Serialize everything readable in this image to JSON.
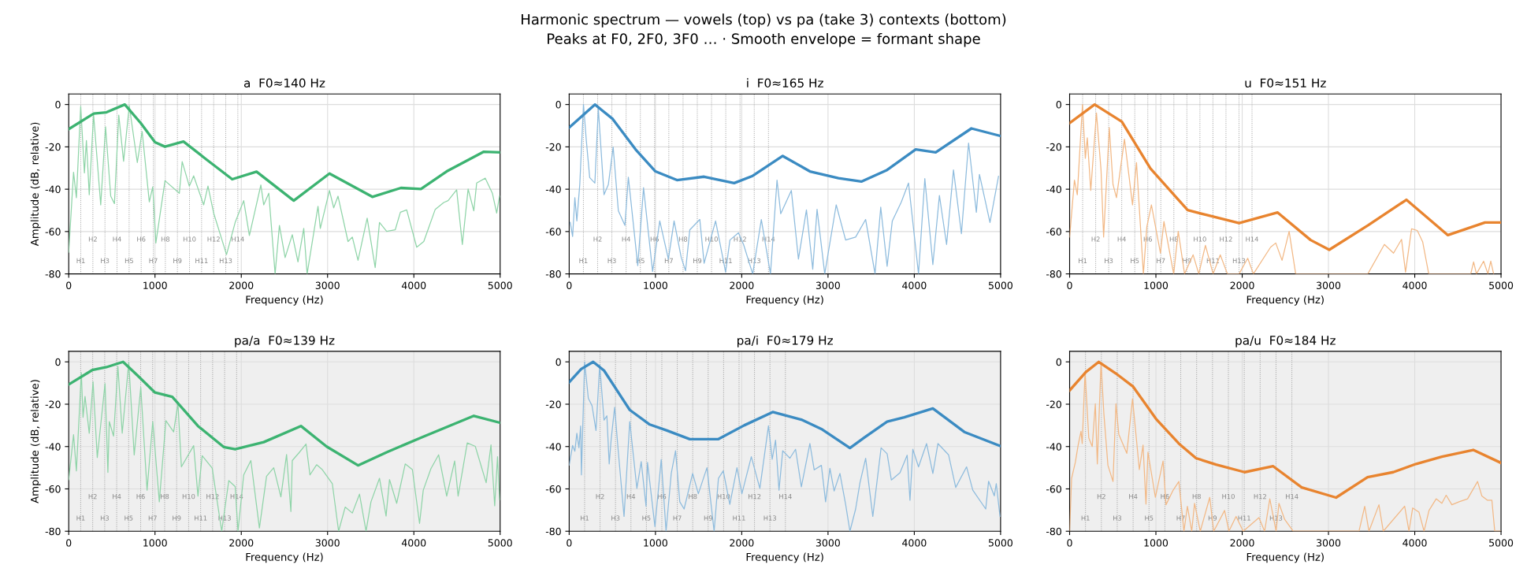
{
  "chart_data": [
    {
      "type": "line",
      "title": "a  F0≈140 Hz",
      "xlabel": "Frequency (Hz)",
      "ylabel": "Amplitude (dB, relative)",
      "annotations": [
        "Harmonic spectrum — vowels (top) vs pa (take 3) contexts (bottom)",
        "Peaks at F0, 2F0, 3F0 … · Smooth envelope = formant shape"
      ],
      "xlim": [
        0,
        5000
      ],
      "xticks": [
        0,
        1000,
        2000,
        3000,
        4000,
        5000
      ],
      "ylim": [
        -80,
        5
      ],
      "yticks": [
        -80,
        -60,
        -40,
        -20,
        0
      ],
      "grid": true,
      "ref_lines": [
        {
          "axis": "x",
          "value": 140,
          "label": "H1"
        },
        {
          "axis": "x",
          "value": 280,
          "label": "H2"
        },
        {
          "axis": "x",
          "value": 420,
          "label": "H3"
        },
        {
          "axis": "x",
          "value": 560,
          "label": "H4"
        },
        {
          "axis": "x",
          "value": 700,
          "label": "H5"
        },
        {
          "axis": "x",
          "value": 840,
          "label": "H6"
        },
        {
          "axis": "x",
          "value": 980,
          "label": "H7"
        },
        {
          "axis": "x",
          "value": 1120,
          "label": "H8"
        },
        {
          "axis": "x",
          "value": 1260,
          "label": "H9"
        },
        {
          "axis": "x",
          "value": 1400,
          "label": "H10"
        },
        {
          "axis": "x",
          "value": 1540,
          "label": "H11"
        },
        {
          "axis": "x",
          "value": 1680,
          "label": "H12"
        },
        {
          "axis": "x",
          "value": 1820,
          "label": "H13"
        },
        {
          "axis": "x",
          "value": 1960,
          "label": "H14"
        }
      ],
      "series": [
        {
          "color": "#8fd4a8",
          "x": [
            0,
            56,
            89,
            139,
            182,
            205,
            238,
            288,
            371,
            427,
            487,
            530,
            580,
            636,
            702,
            795,
            851,
            934,
            974,
            1010,
            1116,
            1282,
            1315,
            1398,
            1448,
            1564,
            1614,
            1680,
            1829,
            1929,
            2028,
            2094,
            2227,
            2260,
            2319,
            2392,
            2442,
            2508,
            2591,
            2657,
            2724,
            2763,
            2889,
            2916,
            3022,
            3071,
            3121,
            3237,
            3287,
            3353,
            3459,
            3552,
            3602,
            3685,
            3784,
            3844,
            3917,
            4033,
            4115,
            4248,
            4347,
            4397,
            4496,
            4562,
            4629,
            4695,
            4728,
            4828,
            4910,
            4960,
            4993
          ],
          "values": [
            -69.8,
            -32,
            -44,
            -0.8,
            -32.3,
            -17,
            -42.6,
            -4.7,
            -47.4,
            -10.5,
            -43.3,
            -46.8,
            -5,
            -26.8,
            -0.6,
            -27.4,
            -12.7,
            -46,
            -38.9,
            -65.4,
            -36,
            -41.9,
            -27,
            -38.6,
            -33.7,
            -47.4,
            -38.5,
            -51.3,
            -70.9,
            -55.7,
            -45.4,
            -61.9,
            -38,
            -47.4,
            -41.9,
            -80,
            -57.1,
            -72.3,
            -61.5,
            -74.3,
            -58.5,
            -80,
            -48.1,
            -58.5,
            -40.6,
            -48.8,
            -43.3,
            -64.7,
            -62.6,
            -73.6,
            -53.7,
            -77,
            -55.7,
            -59.9,
            -59.2,
            -50.9,
            -49.8,
            -67.4,
            -64.7,
            -49.5,
            -46.3,
            -45.4,
            -40.3,
            -66.1,
            -39.9,
            -50.2,
            -37.1,
            -34.8,
            -41.9,
            -51.3,
            -43.3
          ]
        },
        {
          "color": "#3cb371",
          "x": [
            0,
            290,
            437,
            650,
            835,
            1000,
            1115,
            1330,
            1597,
            1895,
            2177,
            2608,
            3022,
            3519,
            3850,
            4082,
            4380,
            4811,
            4993
          ],
          "values": [
            -11.6,
            -4.3,
            -3.7,
            0,
            -8.8,
            -17.8,
            -19.9,
            -17.5,
            -26,
            -35.3,
            -31.7,
            -45.4,
            -32.6,
            -43.6,
            -39.4,
            -39.9,
            -31.6,
            -22.3,
            -22.6
          ]
        }
      ]
    },
    {
      "type": "line",
      "title": "i  F0≈165 Hz",
      "xlabel": "Frequency (Hz)",
      "xlim": [
        0,
        5000
      ],
      "xticks": [
        0,
        1000,
        2000,
        3000,
        4000,
        5000
      ],
      "ylim": [
        -80,
        5
      ],
      "yticks": [
        -80,
        -60,
        -40,
        -20,
        0
      ],
      "grid": true,
      "ref_lines": [
        {
          "axis": "x",
          "value": 165,
          "label": "H1"
        },
        {
          "axis": "x",
          "value": 330,
          "label": "H2"
        },
        {
          "axis": "x",
          "value": 495,
          "label": "H3"
        },
        {
          "axis": "x",
          "value": 660,
          "label": "H4"
        },
        {
          "axis": "x",
          "value": 825,
          "label": "H5"
        },
        {
          "axis": "x",
          "value": 990,
          "label": "H6"
        },
        {
          "axis": "x",
          "value": 1155,
          "label": "H7"
        },
        {
          "axis": "x",
          "value": 1320,
          "label": "H8"
        },
        {
          "axis": "x",
          "value": 1485,
          "label": "H9"
        },
        {
          "axis": "x",
          "value": 1650,
          "label": "H10"
        },
        {
          "axis": "x",
          "value": 1815,
          "label": "H11"
        },
        {
          "axis": "x",
          "value": 1980,
          "label": "H12"
        },
        {
          "axis": "x",
          "value": 2145,
          "label": "H13"
        },
        {
          "axis": "x",
          "value": 2310,
          "label": "H14"
        }
      ],
      "series": [
        {
          "color": "#8dbbdd",
          "x": [
            13,
            40,
            66,
            89,
            123,
            166,
            199,
            238,
            298,
            338,
            404,
            454,
            510,
            570,
            646,
            686,
            795,
            862,
            967,
            1050,
            1150,
            1216,
            1299,
            1349,
            1398,
            1514,
            1564,
            1697,
            1813,
            1863,
            1962,
            2021,
            2127,
            2227,
            2333,
            2409,
            2452,
            2575,
            2657,
            2750,
            2823,
            2873,
            2962,
            3095,
            3204,
            3320,
            3436,
            3545,
            3611,
            3685,
            3745,
            3850,
            3933,
            4049,
            4122,
            4215,
            4291,
            4374,
            4454,
            4546,
            4629,
            4719,
            4755,
            4877,
            4976
          ],
          "values": [
            -55.7,
            -62.3,
            -44,
            -55,
            -37.8,
            0,
            -17.1,
            -34.5,
            -37.1,
            -1.9,
            -42.6,
            -37.8,
            -20.1,
            -50.2,
            -57.1,
            -34.3,
            -76.1,
            -39.3,
            -78.9,
            -55,
            -73,
            -55,
            -72.3,
            -78.5,
            -59.2,
            -54.3,
            -75,
            -55,
            -79.2,
            -64,
            -60.6,
            -66.1,
            -80,
            -54.3,
            -80,
            -35.7,
            -51.6,
            -40.6,
            -73,
            -49.8,
            -77.8,
            -49.5,
            -80,
            -47.4,
            -64,
            -62.6,
            -54.3,
            -80,
            -48.5,
            -76.4,
            -55,
            -46,
            -37.1,
            -80,
            -35,
            -75.6,
            -43,
            -66.1,
            -30.9,
            -61,
            -18.2,
            -50.9,
            -33,
            -55.7,
            -33.9
          ]
        },
        {
          "color": "#3b8bc2",
          "x": [
            0,
            298,
            504,
            769,
            1000,
            1249,
            1564,
            1912,
            2127,
            2475,
            2790,
            3121,
            3386,
            3685,
            4016,
            4248,
            4662,
            4993
          ],
          "values": [
            -10.9,
            0,
            -6.8,
            -21.2,
            -31.6,
            -35.7,
            -34.1,
            -37.1,
            -33.7,
            -24.3,
            -31.6,
            -34.8,
            -36.4,
            -30.9,
            -21.2,
            -22.6,
            -11.3,
            -14.8
          ]
        }
      ]
    },
    {
      "type": "line",
      "title": "u  F0≈151 Hz",
      "xlabel": "Frequency (Hz)",
      "xlim": [
        0,
        5000
      ],
      "xticks": [
        0,
        1000,
        2000,
        3000,
        4000,
        5000
      ],
      "ylim": [
        -80,
        5
      ],
      "yticks": [
        -80,
        -60,
        -40,
        -20,
        0
      ],
      "grid": true,
      "ref_lines": [
        {
          "axis": "x",
          "value": 151,
          "label": "H1"
        },
        {
          "axis": "x",
          "value": 302,
          "label": "H2"
        },
        {
          "axis": "x",
          "value": 453,
          "label": "H3"
        },
        {
          "axis": "x",
          "value": 604,
          "label": "H4"
        },
        {
          "axis": "x",
          "value": 755,
          "label": "H5"
        },
        {
          "axis": "x",
          "value": 906,
          "label": "H6"
        },
        {
          "axis": "x",
          "value": 1057,
          "label": "H7"
        },
        {
          "axis": "x",
          "value": 1208,
          "label": "H8"
        },
        {
          "axis": "x",
          "value": 1359,
          "label": "H9"
        },
        {
          "axis": "x",
          "value": 1510,
          "label": "H10"
        },
        {
          "axis": "x",
          "value": 1661,
          "label": "H11"
        },
        {
          "axis": "x",
          "value": 1812,
          "label": "H12"
        },
        {
          "axis": "x",
          "value": 1963,
          "label": "H13"
        },
        {
          "axis": "x",
          "value": 2114,
          "label": "H14"
        }
      ],
      "series": [
        {
          "color": "#f2b885",
          "x": [
            0,
            56,
            89,
            149,
            182,
            205,
            245,
            311,
            364,
            394,
            460,
            503,
            543,
            636,
            686,
            729,
            775,
            855,
            895,
            948,
            1053,
            1093,
            1206,
            1259,
            1332,
            1431,
            1497,
            1574,
            1663,
            1746,
            1829,
            1964,
            2064,
            2130,
            2329,
            2389,
            2462,
            2544,
            2620,
            3456,
            3648,
            3754,
            3847,
            3893,
            3963,
            4029,
            4092,
            4162,
            4649,
            4682,
            4715,
            4798,
            4848,
            4881,
            4914
          ],
          "values": [
            -62.6,
            -35.7,
            -42.6,
            0,
            -25.4,
            -15.7,
            -40.6,
            -4,
            -30.9,
            -62.6,
            -10.9,
            -37.8,
            -44,
            -16.4,
            -33,
            -47.4,
            -27.4,
            -80,
            -57.8,
            -47.4,
            -70.2,
            -55.3,
            -80,
            -59.9,
            -80,
            -71,
            -80,
            -66.5,
            -80,
            -71,
            -80,
            -80,
            -72.6,
            -80,
            -67.4,
            -65.4,
            -73.6,
            -59.9,
            -80,
            -80,
            -66.1,
            -70.2,
            -63.7,
            -79.2,
            -58.7,
            -59.5,
            -64.9,
            -80,
            -80,
            -74.3,
            -80,
            -74,
            -80,
            -74,
            -80
          ]
        },
        {
          "color": "#e8842f",
          "x": [
            0,
            290,
            605,
            937,
            1368,
            1600,
            1964,
            2411,
            2793,
            3009,
            3456,
            3903,
            4384,
            4814,
            4996
          ],
          "values": [
            -8.8,
            0,
            -8.1,
            -30.2,
            -49.9,
            -52.3,
            -56,
            -51,
            -64,
            -68.6,
            -57.1,
            -45,
            -61.7,
            -55.7,
            -55.7
          ]
        }
      ]
    },
    {
      "type": "line",
      "title": "pa/a  F0≈139 Hz",
      "xlabel": "Frequency (Hz)",
      "ylabel": "Amplitude (dB, relative)",
      "xlim": [
        0,
        5000
      ],
      "xticks": [
        0,
        1000,
        2000,
        3000,
        4000,
        5000
      ],
      "ylim": [
        -80,
        5
      ],
      "yticks": [
        -80,
        -60,
        -40,
        -20,
        0
      ],
      "grid": true,
      "bands": [
        {
          "axis": "x",
          "from": 0,
          "to": 5000,
          "color": "#efefef"
        }
      ],
      "ref_lines": [
        {
          "axis": "x",
          "value": 139,
          "label": "H1"
        },
        {
          "axis": "x",
          "value": 278,
          "label": "H2"
        },
        {
          "axis": "x",
          "value": 417,
          "label": "H3"
        },
        {
          "axis": "x",
          "value": 556,
          "label": "H4"
        },
        {
          "axis": "x",
          "value": 695,
          "label": "H5"
        },
        {
          "axis": "x",
          "value": 834,
          "label": "H6"
        },
        {
          "axis": "x",
          "value": 973,
          "label": "H7"
        },
        {
          "axis": "x",
          "value": 1112,
          "label": "H8"
        },
        {
          "axis": "x",
          "value": 1251,
          "label": "H9"
        },
        {
          "axis": "x",
          "value": 1390,
          "label": "H10"
        },
        {
          "axis": "x",
          "value": 1529,
          "label": "H11"
        },
        {
          "axis": "x",
          "value": 1668,
          "label": "H12"
        },
        {
          "axis": "x",
          "value": 1807,
          "label": "H13"
        },
        {
          "axis": "x",
          "value": 1946,
          "label": "H14"
        }
      ],
      "series": [
        {
          "color": "#8fd4a8",
          "x": [
            0,
            56,
            89,
            146,
            166,
            189,
            238,
            282,
            331,
            421,
            454,
            470,
            520,
            570,
            620,
            696,
            759,
            835,
            908,
            974,
            1050,
            1126,
            1216,
            1266,
            1306,
            1448,
            1498,
            1547,
            1663,
            1773,
            1855,
            1929,
            1962,
            2028,
            2111,
            2210,
            2293,
            2376,
            2459,
            2525,
            2575,
            2591,
            2674,
            2750,
            2796,
            2873,
            2939,
            3055,
            3128,
            3204,
            3287,
            3370,
            3446,
            3503,
            3602,
            3678,
            3718,
            3801,
            3900,
            3983,
            4066,
            4109,
            4198,
            4287,
            4381,
            4473,
            4513,
            4619,
            4712,
            4838,
            4894,
            4937,
            4970,
            4993
          ],
          "values": [
            -55.7,
            -34.4,
            -51.5,
            -5.2,
            -26.2,
            -16.3,
            -33.7,
            -9.4,
            -45.2,
            -10.3,
            -52.2,
            -28.2,
            -35.1,
            -2.1,
            -33.7,
            -0.3,
            -44,
            -12,
            -60.6,
            -28.2,
            -66.1,
            -27.8,
            -33.1,
            -19.8,
            -49.6,
            -39.6,
            -63.4,
            -44.3,
            -50.2,
            -80,
            -56.1,
            -58.9,
            -80,
            -53.4,
            -46.6,
            -78.5,
            -54,
            -50,
            -63.8,
            -43.8,
            -70.7,
            -46.6,
            -42.7,
            -38.8,
            -53.4,
            -48.6,
            -50.9,
            -57.5,
            -80,
            -68.6,
            -71.4,
            -62.5,
            -80,
            -66.1,
            -55,
            -72.8,
            -55.6,
            -66.8,
            -48.2,
            -50.9,
            -76.3,
            -60.6,
            -50.4,
            -43.9,
            -63.4,
            -46.8,
            -63.4,
            -38.3,
            -39.9,
            -57.1,
            -39.2,
            -68,
            -44.8,
            -65.1
          ]
        },
        {
          "color": "#3cb371",
          "x": [
            0,
            272,
            437,
            630,
            802,
            1000,
            1200,
            1498,
            1796,
            1929,
            2260,
            2691,
            2989,
            3353,
            3685,
            4082,
            4695,
            4993
          ],
          "values": [
            -10.7,
            -3.9,
            -2.5,
            0,
            -6.6,
            -14.5,
            -16.5,
            -30.3,
            -40.2,
            -41.3,
            -37.9,
            -30.3,
            -40,
            -48.9,
            -42.7,
            -35.8,
            -25.5,
            -28.7
          ]
        }
      ]
    },
    {
      "type": "line",
      "title": "pa/i  F0≈179 Hz",
      "xlabel": "Frequency (Hz)",
      "xlim": [
        0,
        5000
      ],
      "xticks": [
        0,
        1000,
        2000,
        3000,
        4000,
        5000
      ],
      "ylim": [
        -80,
        5
      ],
      "yticks": [
        -80,
        -60,
        -40,
        -20,
        0
      ],
      "grid": true,
      "bands": [
        {
          "axis": "x",
          "from": 0,
          "to": 5000,
          "color": "#efefef"
        }
      ],
      "ref_lines": [
        {
          "axis": "x",
          "value": 179,
          "label": "H1"
        },
        {
          "axis": "x",
          "value": 358,
          "label": "H2"
        },
        {
          "axis": "x",
          "value": 537,
          "label": "H3"
        },
        {
          "axis": "x",
          "value": 716,
          "label": "H4"
        },
        {
          "axis": "x",
          "value": 895,
          "label": "H5"
        },
        {
          "axis": "x",
          "value": 1074,
          "label": "H6"
        },
        {
          "axis": "x",
          "value": 1253,
          "label": "H7"
        },
        {
          "axis": "x",
          "value": 1432,
          "label": "H8"
        },
        {
          "axis": "x",
          "value": 1611,
          "label": "H9"
        },
        {
          "axis": "x",
          "value": 1790,
          "label": "H10"
        },
        {
          "axis": "x",
          "value": 1969,
          "label": "H11"
        },
        {
          "axis": "x",
          "value": 2148,
          "label": "H12"
        },
        {
          "axis": "x",
          "value": 2327,
          "label": "H13"
        },
        {
          "axis": "x",
          "value": 2506,
          "label": "H14"
        }
      ],
      "series": [
        {
          "color": "#8dbbdd",
          "x": [
            0,
            40,
            66,
            89,
            113,
            133,
            142,
            179,
            222,
            265,
            311,
            354,
            404,
            437,
            464,
            487,
            527,
            570,
            636,
            702,
            785,
            835,
            891,
            908,
            994,
            1067,
            1123,
            1183,
            1233,
            1282,
            1332,
            1431,
            1497,
            1597,
            1680,
            1730,
            1786,
            1862,
            1945,
            2002,
            2111,
            2210,
            2310,
            2353,
            2392,
            2432,
            2475,
            2558,
            2624,
            2691,
            2790,
            2840,
            2923,
            2972,
            3022,
            3071,
            3138,
            3204,
            3254,
            3320,
            3370,
            3436,
            3519,
            3615,
            3685,
            3734,
            3834,
            3917,
            3950,
            3983,
            4049,
            4142,
            4215,
            4274,
            4397,
            4480,
            4606,
            4678,
            4828,
            4861,
            4927,
            4950,
            4993
          ],
          "values": [
            -48.8,
            -39.5,
            -42.2,
            -33.7,
            -40.5,
            -30.3,
            -53.4,
            0,
            -17.2,
            -20.7,
            -32.4,
            -1.4,
            -27.5,
            -25.5,
            -48.2,
            -36.5,
            -21.4,
            -42.7,
            -73,
            -28.2,
            -59.8,
            -47.1,
            -68.2,
            -47.5,
            -77.8,
            -46.1,
            -80,
            -52.7,
            -42,
            -66.1,
            -69.5,
            -52.7,
            -62.3,
            -50,
            -80,
            -55,
            -51.5,
            -67.3,
            -50,
            -62.3,
            -44.8,
            -59.8,
            -30.2,
            -46,
            -37,
            -60.6,
            -42,
            -45.5,
            -41.3,
            -59,
            -38.6,
            -51,
            -48.9,
            -66.1,
            -50.3,
            -61,
            -52.7,
            -67.3,
            -80,
            -69.5,
            -57.2,
            -45.5,
            -73,
            -40.6,
            -43.4,
            -55.8,
            -52.4,
            -44.1,
            -65.4,
            -41.3,
            -49.6,
            -38.6,
            -52.7,
            -38.6,
            -43.9,
            -59.3,
            -49.6,
            -60.6,
            -69.5,
            -56.4,
            -63.3,
            -57.5,
            -73
          ]
        },
        {
          "color": "#3b8bc2",
          "x": [
            0,
            139,
            278,
            404,
            702,
            934,
            1133,
            1398,
            1730,
            2028,
            2359,
            2691,
            2923,
            3254,
            3420,
            3685,
            3884,
            4215,
            4579,
            4993
          ],
          "values": [
            -9.6,
            -3.4,
            0,
            -4.1,
            -22.7,
            -29.6,
            -32.4,
            -36.5,
            -36.5,
            -30,
            -23.7,
            -27.3,
            -31.7,
            -40.7,
            -35.8,
            -28.2,
            -26.2,
            -22,
            -33.1,
            -39.7
          ]
        }
      ]
    },
    {
      "type": "line",
      "title": "pa/u  F0≈184 Hz",
      "xlabel": "Frequency (Hz)",
      "xlim": [
        0,
        5000
      ],
      "xticks": [
        0,
        1000,
        2000,
        3000,
        4000,
        5000
      ],
      "ylim": [
        -80,
        5
      ],
      "yticks": [
        -80,
        -60,
        -40,
        -20,
        0
      ],
      "grid": true,
      "bands": [
        {
          "axis": "x",
          "from": 0,
          "to": 5000,
          "color": "#efefef"
        }
      ],
      "ref_lines": [
        {
          "axis": "x",
          "value": 184,
          "label": "H1"
        },
        {
          "axis": "x",
          "value": 368,
          "label": "H2"
        },
        {
          "axis": "x",
          "value": 552,
          "label": "H3"
        },
        {
          "axis": "x",
          "value": 736,
          "label": "H4"
        },
        {
          "axis": "x",
          "value": 920,
          "label": "H5"
        },
        {
          "axis": "x",
          "value": 1104,
          "label": "H6"
        },
        {
          "axis": "x",
          "value": 1288,
          "label": "H7"
        },
        {
          "axis": "x",
          "value": 1472,
          "label": "H8"
        },
        {
          "axis": "x",
          "value": 1656,
          "label": "H9"
        },
        {
          "axis": "x",
          "value": 1840,
          "label": "H10"
        },
        {
          "axis": "x",
          "value": 2024,
          "label": "H11"
        },
        {
          "axis": "x",
          "value": 2208,
          "label": "H12"
        },
        {
          "axis": "x",
          "value": 2392,
          "label": "H13"
        },
        {
          "axis": "x",
          "value": 2576,
          "label": "H14"
        }
      ],
      "series": [
        {
          "color": "#f2b885",
          "x": [
            0,
            23,
            66,
            99,
            132,
            146,
            179,
            222,
            262,
            298,
            321,
            364,
            397,
            444,
            503,
            537,
            570,
            663,
            729,
            808,
            851,
            885,
            908,
            994,
            1040,
            1083,
            1117,
            1200,
            1266,
            1325,
            1365,
            1415,
            1448,
            1514,
            1624,
            1670,
            1796,
            1846,
            1929,
            2012,
            2194,
            2260,
            2320,
            2393,
            2426,
            2492,
            2591,
            3354,
            3420,
            3469,
            3585,
            3635,
            3883,
            3933,
            3976,
            4049,
            4108,
            4165,
            4248,
            4314,
            4364,
            4430,
            4513,
            4612,
            4728,
            4778,
            4844,
            4894,
            4927,
            4993
          ],
          "values": [
            -80,
            -55,
            -47.5,
            -39.3,
            -32.8,
            -38.6,
            -4.8,
            -35.9,
            -40,
            -19.8,
            -48.2,
            -0.3,
            -24.5,
            -48.9,
            -56.5,
            -19.8,
            -34.2,
            -43.2,
            -17.4,
            -50.9,
            -39.3,
            -67.2,
            -42.7,
            -64,
            -55,
            -46.8,
            -67.5,
            -60.6,
            -56.5,
            -80,
            -68.2,
            -80,
            -66.8,
            -80,
            -64,
            -80,
            -70.2,
            -80,
            -73,
            -80,
            -73.6,
            -80,
            -64.7,
            -80,
            -66.8,
            -74.4,
            -80,
            -80,
            -68.2,
            -80,
            -67.5,
            -80,
            -68.2,
            -80,
            -69,
            -71,
            -80,
            -70.2,
            -64.7,
            -66.8,
            -63,
            -67.5,
            -66.1,
            -64.7,
            -56.5,
            -63.4,
            -65.4,
            -65.4,
            -80,
            -80
          ]
        },
        {
          "color": "#e8842f",
          "x": [
            0,
            189,
            338,
            537,
            736,
            1001,
            1266,
            1465,
            1697,
            2028,
            2359,
            2690,
            3088,
            3453,
            3751,
            4016,
            4314,
            4678,
            4993
          ],
          "values": [
            -13.5,
            -4.8,
            0,
            -5.5,
            -11.7,
            -26.9,
            -38.6,
            -45.5,
            -48.5,
            -52.1,
            -49.3,
            -59.3,
            -64.1,
            -54.5,
            -52.1,
            -48.2,
            -44.8,
            -41.6,
            -47.6
          ]
        }
      ]
    }
  ]
}
